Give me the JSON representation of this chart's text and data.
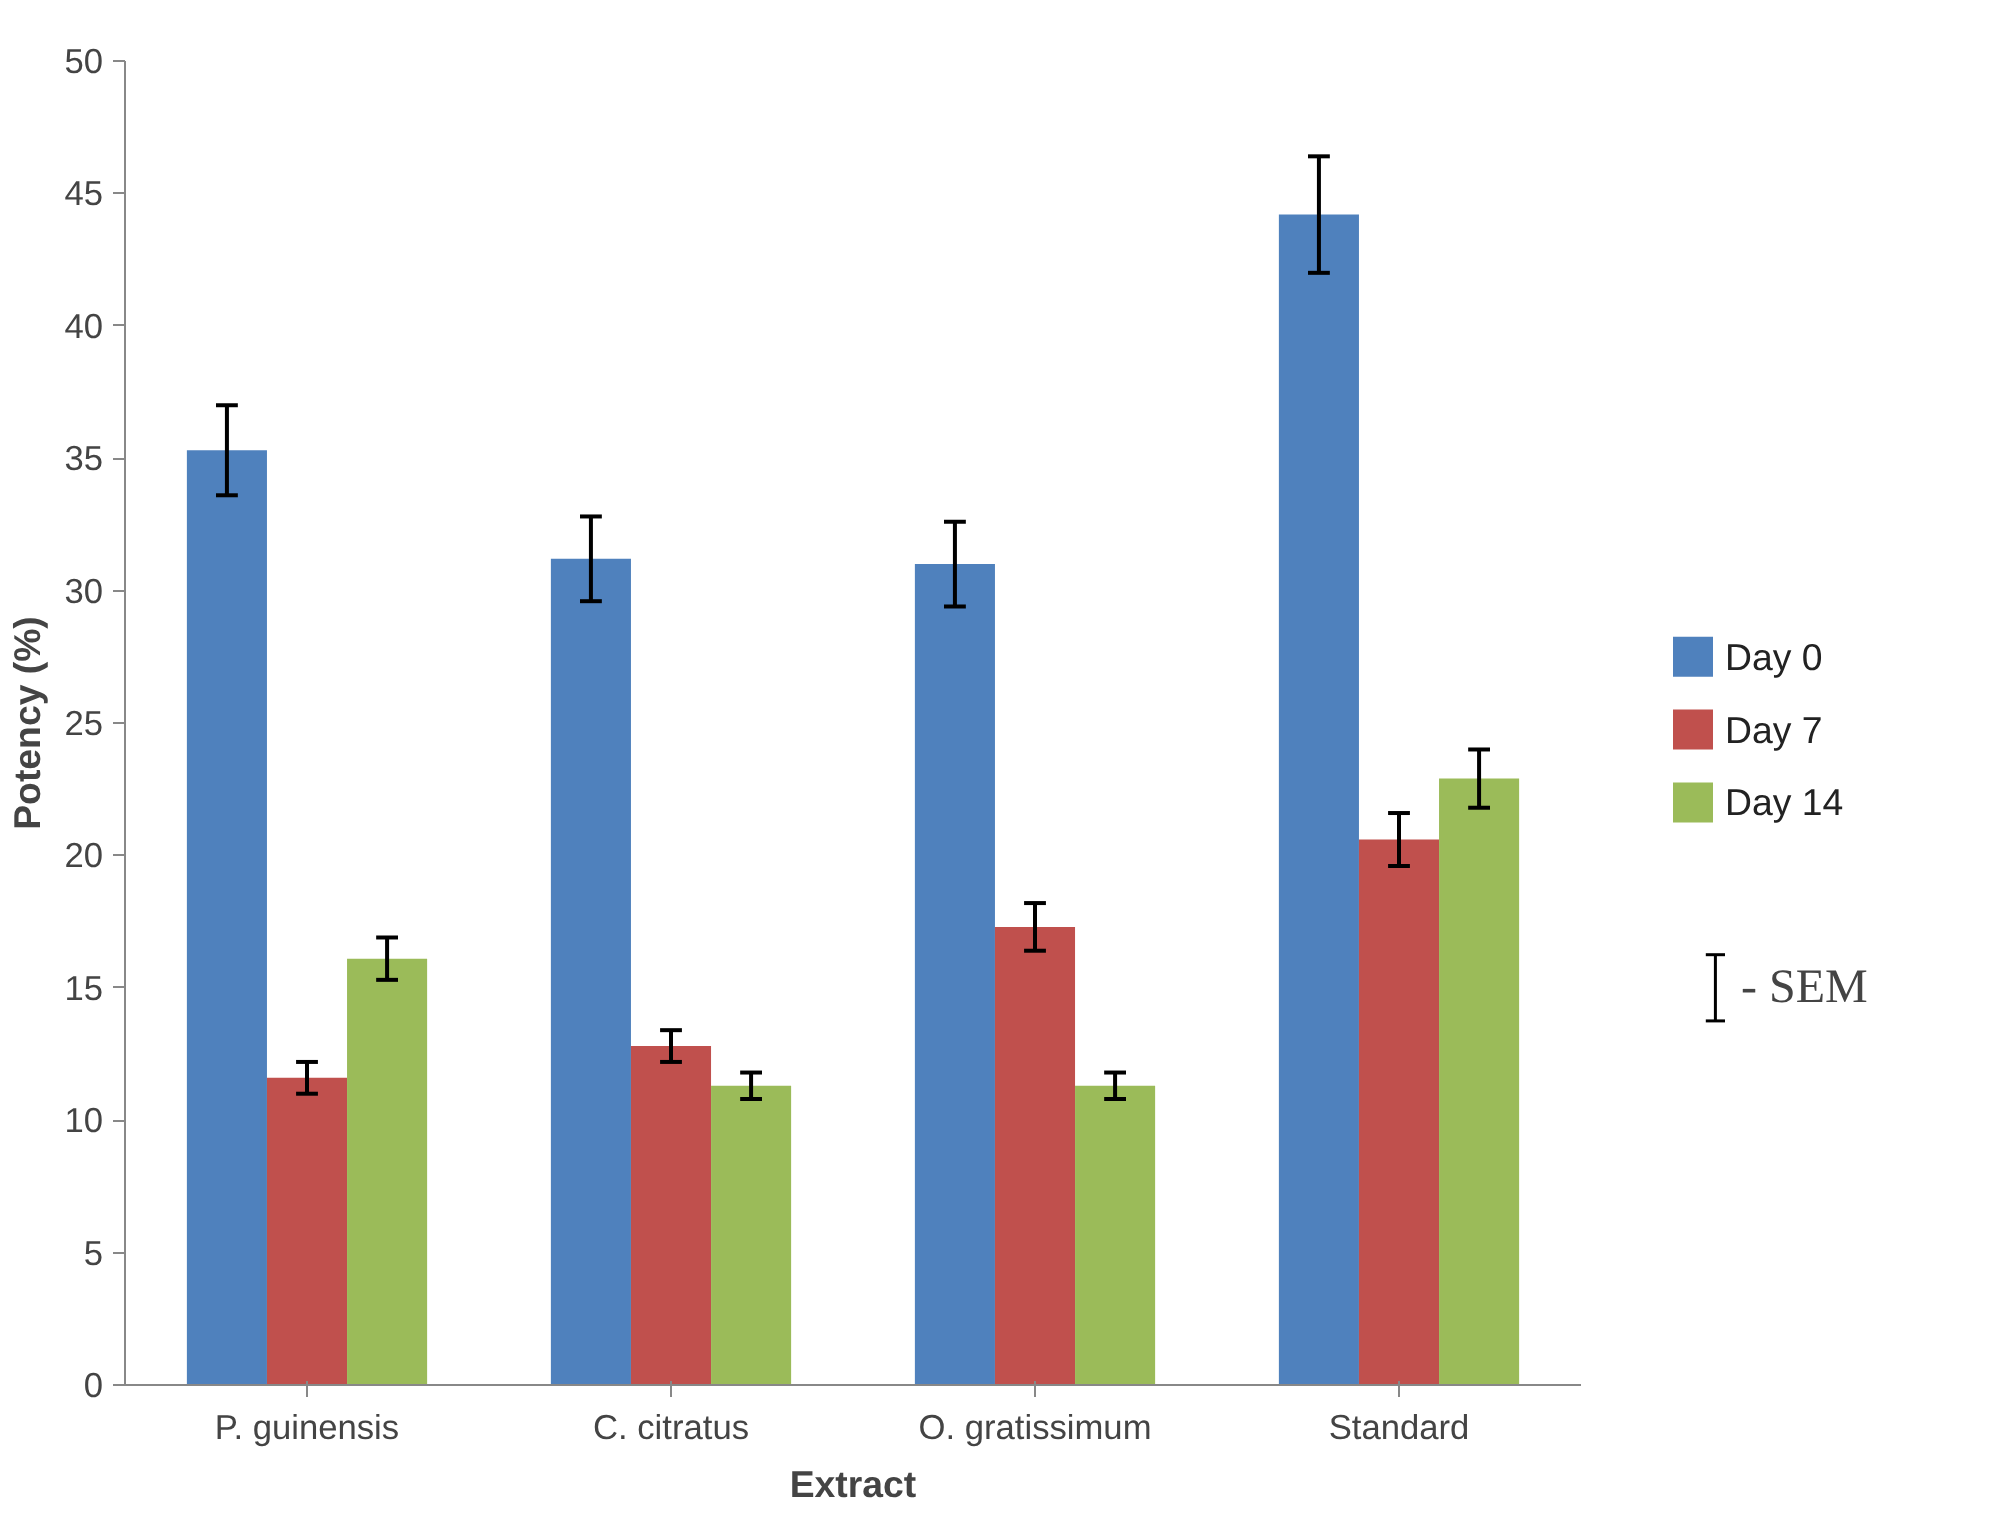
{
  "chart_data": {
    "type": "bar",
    "xlabel": "Extract",
    "ylabel": "Potency (%)",
    "categories": [
      "P. guinensis",
      "C. citratus",
      "O. gratissimum",
      "Standard"
    ],
    "series": [
      {
        "name": "Day 0",
        "color": "#4f81bd",
        "values": [
          35.3,
          31.2,
          31.0,
          44.2
        ],
        "errors": [
          1.7,
          1.6,
          1.6,
          2.2
        ]
      },
      {
        "name": "Day 7",
        "color": "#c0504d",
        "values": [
          11.6,
          12.8,
          17.3,
          20.6
        ],
        "errors": [
          0.6,
          0.6,
          0.9,
          1.0
        ]
      },
      {
        "name": "Day 14",
        "color": "#9bbb59",
        "values": [
          16.1,
          11.3,
          11.3,
          22.9
        ],
        "errors": [
          0.8,
          0.5,
          0.5,
          1.1
        ]
      }
    ],
    "ylim": [
      0,
      50
    ],
    "yticks": [
      0,
      5,
      10,
      15,
      20,
      25,
      30,
      35,
      40,
      45,
      50
    ],
    "grid": false,
    "legend": "right",
    "annotations": [
      "- SEM"
    ]
  }
}
